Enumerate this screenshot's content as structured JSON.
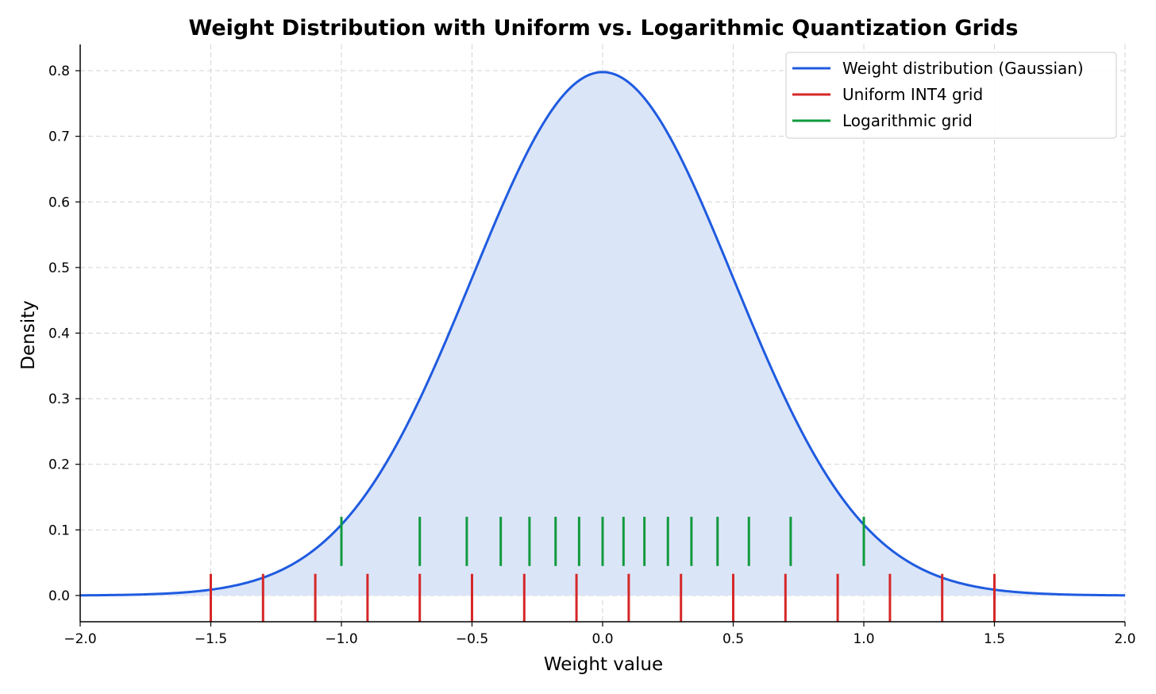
{
  "chart_data": {
    "type": "line",
    "title": "Weight Distribution with Uniform vs. Logarithmic Quantization Grids",
    "xlabel": "Weight value",
    "ylabel": "Density",
    "xlim": [
      -2.0,
      2.0
    ],
    "ylim": [
      -0.04,
      0.84
    ],
    "x_ticks": [
      "−2.0",
      "−1.5",
      "−1.0",
      "−0.5",
      "0.0",
      "0.5",
      "1.0",
      "1.5",
      "2.0"
    ],
    "x_tick_values": [
      -2.0,
      -1.5,
      -1.0,
      -0.5,
      0.0,
      0.5,
      1.0,
      1.5,
      2.0
    ],
    "y_ticks": [
      "0.0",
      "0.1",
      "0.2",
      "0.3",
      "0.4",
      "0.5",
      "0.6",
      "0.7",
      "0.8"
    ],
    "y_tick_values": [
      0.0,
      0.1,
      0.2,
      0.3,
      0.4,
      0.5,
      0.6,
      0.7,
      0.8
    ],
    "grid": true,
    "legend_position": "top-right",
    "series": [
      {
        "name": "Weight distribution (Gaussian)",
        "kind": "density",
        "color": "#1f5be0",
        "fill": "#dbe5f8",
        "x": [
          -2.0,
          -1.9,
          -1.8,
          -1.7,
          -1.6,
          -1.5,
          -1.4,
          -1.3,
          -1.2,
          -1.1,
          -1.0,
          -0.9,
          -0.8,
          -0.7,
          -0.6,
          -0.5,
          -0.4,
          -0.3,
          -0.2,
          -0.1,
          0.0,
          0.1,
          0.2,
          0.3,
          0.4,
          0.5,
          0.6,
          0.7,
          0.8,
          0.9,
          1.0,
          1.1,
          1.2,
          1.3,
          1.4,
          1.5,
          1.6,
          1.7,
          1.8,
          1.9,
          2.0
        ],
        "y": [
          0.0003,
          0.0006,
          0.0012,
          0.0024,
          0.0047,
          0.0088,
          0.0158,
          0.0272,
          0.0448,
          0.0707,
          0.108,
          0.1579,
          0.2218,
          0.2995,
          0.3884,
          0.4839,
          0.5794,
          0.6664,
          0.7365,
          0.7821,
          0.7979,
          0.7821,
          0.7365,
          0.6664,
          0.5794,
          0.4839,
          0.3884,
          0.2995,
          0.2218,
          0.1579,
          0.108,
          0.0707,
          0.0448,
          0.0272,
          0.0158,
          0.0088,
          0.0047,
          0.0024,
          0.0012,
          0.0006,
          0.0003
        ]
      },
      {
        "name": "Uniform INT4 grid",
        "kind": "ticks",
        "color": "#d62728",
        "y_range": [
          -0.04,
          0.033
        ],
        "x": [
          -1.5,
          -1.3,
          -1.1,
          -0.9,
          -0.7,
          -0.5,
          -0.3,
          -0.1,
          0.1,
          0.3,
          0.5,
          0.7,
          0.9,
          1.1,
          1.3,
          1.5
        ]
      },
      {
        "name": "Logarithmic grid",
        "kind": "ticks",
        "color": "#119a3e",
        "y_range": [
          0.045,
          0.12
        ],
        "x": [
          -1.0,
          -0.7,
          -0.52,
          -0.39,
          -0.28,
          -0.18,
          -0.09,
          0.0,
          0.08,
          0.16,
          0.25,
          0.34,
          0.44,
          0.56,
          0.72,
          1.0
        ]
      }
    ]
  }
}
